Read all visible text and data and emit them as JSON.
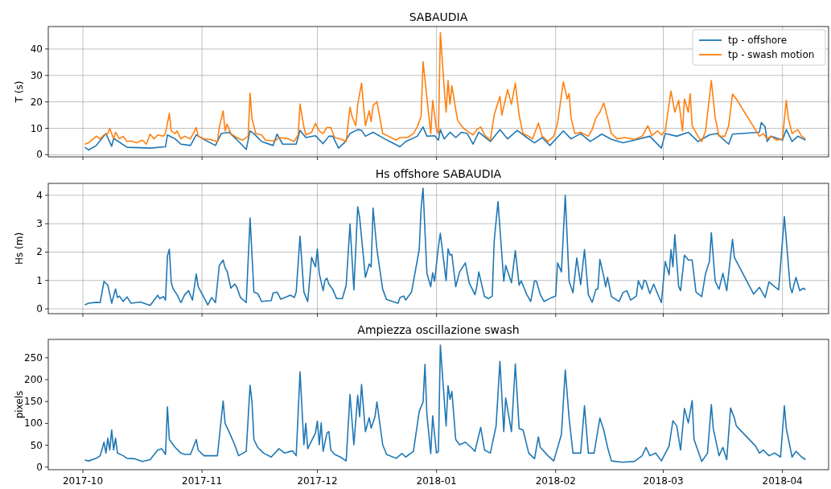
{
  "chart_data": [
    {
      "type": "line",
      "title": "SABAUDIA",
      "ylabel": "T (s)",
      "xlim": [
        "2017-09-22",
        "2018-04-13"
      ],
      "xticks": [
        "2017-10",
        "2017-11",
        "2017-12",
        "2018-01",
        "2018-02",
        "2018-03",
        "2018-04"
      ],
      "ylim": [
        -0.8,
        48.5
      ],
      "yticks": [
        0,
        10,
        20,
        30,
        40
      ],
      "grid": true,
      "legend": "top right",
      "tick_labels": "y",
      "series": [
        {
          "name": "tp - offshore",
          "color": "#1f77b4",
          "x": [
            "2017-10-01T12:00",
            "2017-10-02T12:00",
            "2017-10-04T12:00",
            "2017-10-07",
            "2017-10-08T12:00",
            "2017-10-09",
            "2017-10-12T12:00",
            "2017-10-18T12:00",
            "2017-10-22T12:00",
            "2017-10-23",
            "2017-10-25",
            "2017-10-26T12:00",
            "2017-10-29",
            "2017-10-30T12:00",
            "2017-11-01T12:00",
            "2017-11-04T12:00",
            "2017-11-06",
            "2017-11-08",
            "2017-11-10",
            "2017-11-12T12:00",
            "2017-11-13T12:00",
            "2017-11-14T12:00",
            "2017-11-16T12:00",
            "2017-11-19T12:00",
            "2017-11-20T12:00",
            "2017-11-22",
            "2017-11-25T12:00",
            "2017-11-26T12:00",
            "2017-11-28",
            "2017-11-30T12:00",
            "2017-12-02T12:00",
            "2017-12-04",
            "2017-12-05",
            "2017-12-06T12:00",
            "2017-12-08",
            "2017-12-09T12:00",
            "2017-12-11T12:00",
            "2017-12-12T12:00",
            "2017-12-13T12:00",
            "2017-12-15T12:00",
            "2017-12-18T12:00",
            "2017-12-20T12:00",
            "2017-12-22T12:00",
            "2017-12-24",
            "2017-12-27",
            "2017-12-28T12:00",
            "2017-12-29T12:00",
            "2017-12-31T12:00",
            "2018-01-01T12:00",
            "2018-01-02",
            "2018-01-03",
            "2018-01-04T12:00",
            "2018-01-06",
            "2018-01-07T12:00",
            "2018-01-09",
            "2018-01-10T12:00",
            "2018-01-12",
            "2018-01-15",
            "2018-01-17T12:00",
            "2018-01-19T12:00",
            "2018-01-22",
            "2018-01-24T12:00",
            "2018-01-26T12:00",
            "2018-01-28T12:00",
            "2018-01-30T12:00",
            "2018-02-03",
            "2018-02-05",
            "2018-02-07T12:00",
            "2018-02-10",
            "2018-02-13",
            "2018-02-15T12:00",
            "2018-02-18T12:00",
            "2018-02-21T12:00",
            "2018-02-25T12:00",
            "2018-02-28T12:00",
            "2018-03-01T12:00",
            "2018-03-04T12:00",
            "2018-03-07T12:00",
            "2018-03-10",
            "2018-03-13",
            "2018-03-15",
            "2018-03-18",
            "2018-03-19",
            "2018-03-26",
            "2018-03-26T12:00",
            "2018-03-27T12:00",
            "2018-03-28",
            "2018-03-29",
            "2018-04-01",
            "2018-04-02",
            "2018-04-03T12:00",
            "2018-04-05",
            "2018-04-07"
          ],
          "values": [
            2.8,
            1.8,
            3.5,
            8,
            3.2,
            6.2,
            2.8,
            2.5,
            3,
            7.5,
            6,
            4,
            3.5,
            7.5,
            5.8,
            3.5,
            8,
            8.5,
            5.8,
            2,
            9,
            8,
            5,
            3.5,
            7.8,
            4,
            4,
            9.2,
            6.5,
            7.2,
            4.2,
            7,
            7,
            2.5,
            4.5,
            8,
            9.5,
            9.2,
            7,
            8.5,
            6,
            4.5,
            3,
            5,
            7,
            10.5,
            7,
            7.2,
            5.5,
            9.5,
            6,
            8.5,
            6.5,
            8.5,
            8,
            4,
            8.5,
            5,
            9.5,
            6,
            9.2,
            6.5,
            4.5,
            6.5,
            3.5,
            9,
            6,
            8,
            5,
            7.8,
            5.8,
            4.5,
            5.5,
            7,
            2.5,
            8,
            7,
            8.5,
            5,
            7.5,
            8,
            4,
            7.8,
            8.5,
            12.2,
            10.5,
            5,
            7,
            5.5,
            9.5,
            5,
            7,
            5.5
          ]
        },
        {
          "name": "tp - swash motion",
          "color": "#ff7f0e",
          "x": [
            "2017-10-01T12:00",
            "2017-10-02T12:00",
            "2017-10-04T12:00",
            "2017-10-05T12:00",
            "2017-10-06T12:00",
            "2017-10-07T12:00",
            "2017-10-08",
            "2017-10-09",
            "2017-10-09T12:00",
            "2017-10-10T12:00",
            "2017-10-11T12:00",
            "2017-10-12T12:00",
            "2017-10-13T12:00",
            "2017-10-15",
            "2017-10-16T12:00",
            "2017-10-17T12:00",
            "2017-10-18T12:00",
            "2017-10-19T12:00",
            "2017-10-20T12:00",
            "2017-10-22",
            "2017-10-22T12:00",
            "2017-10-23T12:00",
            "2017-10-24",
            "2017-10-25",
            "2017-10-25T12:00",
            "2017-10-26T12:00",
            "2017-10-27T12:00",
            "2017-10-29",
            "2017-10-30T12:00",
            "2017-10-31",
            "2017-11-01T12:00",
            "2017-11-03",
            "2017-11-05",
            "2017-11-05T12:00",
            "2017-11-06T12:00",
            "2017-11-07",
            "2017-11-07T12:00",
            "2017-11-08T12:00",
            "2017-11-10",
            "2017-11-11T12:00",
            "2017-11-13",
            "2017-11-13T12:00",
            "2017-11-14",
            "2017-11-15",
            "2017-11-16T12:00",
            "2017-11-17T12:00",
            "2017-11-20",
            "2017-11-21",
            "2017-11-23T12:00",
            "2017-11-25",
            "2017-11-26",
            "2017-11-26T12:00",
            "2017-11-27T12:00",
            "2017-11-28",
            "2017-11-29T12:00",
            "2017-11-30T12:00",
            "2017-12-01T12:00",
            "2017-12-02T12:00",
            "2017-12-03T12:00",
            "2017-12-04T12:00",
            "2017-12-05T12:00",
            "2017-12-07",
            "2017-12-08T12:00",
            "2017-12-09T12:00",
            "2017-12-10",
            "2017-12-11",
            "2017-12-11T12:00",
            "2017-12-12T12:00",
            "2017-12-13T12:00",
            "2017-12-14T12:00",
            "2017-12-15",
            "2017-12-15T12:00",
            "2017-12-16T12:00",
            "2017-12-18",
            "2017-12-19T12:00",
            "2017-12-21T12:00",
            "2017-12-22T12:00",
            "2017-12-24T12:00",
            "2017-12-26",
            "2017-12-27",
            "2017-12-28",
            "2017-12-28T12:00",
            "2017-12-30T12:00",
            "2017-12-31",
            "2018-01-01",
            "2018-01-01T12:00",
            "2018-01-02",
            "2018-01-03",
            "2018-01-03T12:00",
            "2018-01-04",
            "2018-01-04T12:00",
            "2018-01-05",
            "2018-01-06",
            "2018-01-06T12:00",
            "2018-01-08",
            "2018-01-09",
            "2018-01-10T12:00",
            "2018-01-11T12:00",
            "2018-01-12T12:00",
            "2018-01-13T12:00",
            "2018-01-15",
            "2018-01-16",
            "2018-01-17T12:00",
            "2018-01-18",
            "2018-01-19T12:00",
            "2018-01-20T12:00",
            "2018-01-21T12:00",
            "2018-01-22T12:00",
            "2018-01-23T12:00",
            "2018-01-25",
            "2018-01-26",
            "2018-01-27T12:00",
            "2018-01-28T12:00",
            "2018-01-30",
            "2018-01-31T12:00",
            "2018-02-01T12:00",
            "2018-02-03",
            "2018-02-04",
            "2018-02-04T12:00",
            "2018-02-05",
            "2018-02-06",
            "2018-02-07T12:00",
            "2018-02-09T12:00",
            "2018-02-10T12:00",
            "2018-02-11T12:00",
            "2018-02-12T12:00",
            "2018-02-13T12:00",
            "2018-02-14T12:00",
            "2018-02-15T12:00",
            "2018-02-17",
            "2018-02-19",
            "2018-02-21T12:00",
            "2018-02-23T12:00",
            "2018-02-25",
            "2018-02-26",
            "2018-02-27T12:00",
            "2018-02-28T12:00",
            "2018-03-01T12:00",
            "2018-03-03",
            "2018-03-04",
            "2018-03-05",
            "2018-03-06",
            "2018-03-06T12:00",
            "2018-03-07T12:00",
            "2018-03-08",
            "2018-03-08T12:00",
            "2018-03-10",
            "2018-03-11",
            "2018-03-12",
            "2018-03-13T12:00",
            "2018-03-14T12:00",
            "2018-03-15T12:00",
            "2018-03-17",
            "2018-03-18",
            "2018-03-19",
            "2018-03-20",
            "2018-03-26",
            "2018-03-27",
            "2018-03-28",
            "2018-03-29",
            "2018-03-30T12:00",
            "2018-04-01",
            "2018-04-02",
            "2018-04-02T12:00",
            "2018-04-03T12:00",
            "2018-04-05",
            "2018-04-06",
            "2018-04-07"
          ],
          "values": [
            4,
            4.5,
            7,
            6,
            7.5,
            8,
            10,
            6,
            8.5,
            6,
            7,
            5,
            5.2,
            4.5,
            5.5,
            4,
            7.8,
            6,
            7.5,
            7,
            8.3,
            15.6,
            9,
            8,
            9,
            6,
            7,
            6,
            10.3,
            7,
            6,
            5.8,
            5,
            10.5,
            16.6,
            9,
            11.6,
            8,
            6.5,
            5.5,
            7,
            23.3,
            13.6,
            8,
            7.5,
            5.5,
            5.2,
            6.5,
            6,
            5,
            7.5,
            19.1,
            10.5,
            7.5,
            8.5,
            11.9,
            9,
            8,
            10.3,
            10.3,
            6.5,
            6,
            5,
            18,
            14.6,
            11,
            19,
            27.1,
            11,
            16.6,
            12.5,
            18.6,
            20.1,
            8,
            7,
            5.5,
            6.5,
            6.5,
            8,
            10.5,
            14.6,
            35.2,
            8,
            20.6,
            9.5,
            8,
            46.2,
            25.1,
            16.1,
            28.1,
            19.1,
            26.1,
            17.1,
            13,
            10,
            9,
            7.5,
            9.5,
            10.5,
            7.5,
            5.5,
            15,
            22.1,
            15,
            24.6,
            19.1,
            27.1,
            15,
            8,
            7,
            6,
            12,
            7,
            5,
            7,
            12,
            27.6,
            21.1,
            23.1,
            14,
            8,
            8.5,
            7,
            9.5,
            14,
            16.1,
            19.6,
            14,
            8,
            6,
            6.5,
            5.8,
            7,
            11,
            7.2,
            9,
            7.5,
            9,
            24.1,
            16.1,
            20.6,
            9,
            21.1,
            16.1,
            23.1,
            11,
            7,
            5,
            9,
            28.1,
            14,
            7,
            7,
            11,
            22.9,
            21.1,
            7,
            8,
            6,
            7,
            5.5,
            6,
            20.6,
            14,
            8,
            9.5,
            7,
            6
          ]
        }
      ]
    },
    {
      "type": "line",
      "title": "Hs offshore SABAUDIA",
      "ylabel": "Hs (m)",
      "xlim": [
        "2017-09-22",
        "2018-04-13"
      ],
      "xticks": [
        "2017-10",
        "2017-11",
        "2017-12",
        "2018-01",
        "2018-02",
        "2018-03",
        "2018-04"
      ],
      "ylim": [
        -0.17,
        4.42
      ],
      "yticks": [
        0,
        1,
        2,
        3,
        4
      ],
      "grid": true,
      "tick_labels": "y",
      "series": [
        {
          "color": "#1f77b4",
          "x": [
            "2017-10-01T12:00",
            "2017-10-02T12:00",
            "2017-10-04T12:00",
            "2017-10-05T12:00",
            "2017-10-06T12:00",
            "2017-10-07T12:00",
            "2017-10-08T12:00",
            "2017-10-09T12:00",
            "2017-10-10",
            "2017-10-10T12:00",
            "2017-10-11T12:00",
            "2017-10-12T12:00",
            "2017-10-13T12:00",
            "2017-10-16",
            "2017-10-18T12:00",
            "2017-10-20T12:00",
            "2017-10-21",
            "2017-10-22",
            "2017-10-22T12:00",
            "2017-10-23",
            "2017-10-23T12:00",
            "2017-10-24",
            "2017-10-24T12:00",
            "2017-10-25T12:00",
            "2017-10-26T12:00",
            "2017-10-27T12:00",
            "2017-10-28T12:00",
            "2017-10-29T12:00",
            "2017-10-30T12:00",
            "2017-10-31",
            "2017-11-01T12:00",
            "2017-11-02T12:00",
            "2017-11-03T12:00",
            "2017-11-04T12:00",
            "2017-11-05T12:00",
            "2017-11-06T12:00",
            "2017-11-07",
            "2017-11-07T12:00",
            "2017-11-08T12:00",
            "2017-11-09T12:00",
            "2017-11-10",
            "2017-11-11",
            "2017-11-12T12:00",
            "2017-11-13T12:00",
            "2017-11-14T12:00",
            "2017-11-15T12:00",
            "2017-11-16T12:00",
            "2017-11-19",
            "2017-11-19T12:00",
            "2017-11-20T12:00",
            "2017-11-21T12:00",
            "2017-11-24",
            "2017-11-25",
            "2017-11-25T12:00",
            "2017-11-26T12:00",
            "2017-11-27T12:00",
            "2017-11-28T12:00",
            "2017-11-29T12:00",
            "2017-11-30T12:00",
            "2017-12-01",
            "2017-12-01T12:00",
            "2017-12-02T12:00",
            "2017-12-03",
            "2017-12-03T12:00",
            "2017-12-04",
            "2017-12-05",
            "2017-12-06",
            "2017-12-07T12:00",
            "2017-12-08T12:00",
            "2017-12-09T12:00",
            "2017-12-10T12:00",
            "2017-12-11T12:00",
            "2017-12-12",
            "2017-12-13T12:00",
            "2017-12-14T12:00",
            "2017-12-15",
            "2017-12-15T12:00",
            "2017-12-16T12:00",
            "2017-12-18",
            "2017-12-19",
            "2017-12-20T12:00",
            "2017-12-22",
            "2017-12-22T12:00",
            "2017-12-23T12:00",
            "2017-12-24",
            "2017-12-25",
            "2017-12-25T12:00",
            "2017-12-27T12:00",
            "2017-12-28",
            "2017-12-28T12:00",
            "2017-12-29T12:00",
            "2017-12-30T12:00",
            "2017-12-31",
            "2017-12-31T12:00",
            "2018-01-01T12:00",
            "2018-01-02",
            "2018-01-03T12:00",
            "2018-01-04",
            "2018-01-04T12:00",
            "2018-01-05",
            "2018-01-06",
            "2018-01-07",
            "2018-01-08T12:00",
            "2018-01-09T12:00",
            "2018-01-11",
            "2018-01-11T12:00",
            "2018-01-12",
            "2018-01-13T12:00",
            "2018-01-14T12:00",
            "2018-01-15T12:00",
            "2018-01-16",
            "2018-01-17",
            "2018-01-18T12:00",
            "2018-01-19",
            "2018-01-20T12:00",
            "2018-01-21T12:00",
            "2018-01-22T12:00",
            "2018-01-23",
            "2018-01-24T12:00",
            "2018-01-25T12:00",
            "2018-01-26T12:00",
            "2018-01-27",
            "2018-01-28",
            "2018-01-29",
            "2018-01-31",
            "2018-02-01",
            "2018-02-01T12:00",
            "2018-02-02T12:00",
            "2018-02-03T12:00",
            "2018-02-04T12:00",
            "2018-02-05T12:00",
            "2018-02-06T12:00",
            "2018-02-07T12:00",
            "2018-02-08T12:00",
            "2018-02-09T12:00",
            "2018-02-10T12:00",
            "2018-02-11T12:00",
            "2018-02-12",
            "2018-02-12T12:00",
            "2018-02-13T12:00",
            "2018-02-14",
            "2018-02-14T12:00",
            "2018-02-15T12:00",
            "2018-02-17T12:00",
            "2018-02-18T12:00",
            "2018-02-19T12:00",
            "2018-02-20T12:00",
            "2018-02-22",
            "2018-02-22T12:00",
            "2018-02-23T12:00",
            "2018-02-24",
            "2018-02-24T12:00",
            "2018-02-25T12:00",
            "2018-02-26T12:00",
            "2018-02-27T12:00",
            "2018-02-28T12:00",
            "2018-03-01T12:00",
            "2018-03-02T12:00",
            "2018-03-03",
            "2018-03-03T12:00",
            "2018-03-04",
            "2018-03-05",
            "2018-03-05T12:00",
            "2018-03-06T12:00",
            "2018-03-07T12:00",
            "2018-03-08T12:00",
            "2018-03-09T12:00",
            "2018-03-11",
            "2018-03-12",
            "2018-03-13",
            "2018-03-13T12:00",
            "2018-03-14T12:00",
            "2018-03-15T12:00",
            "2018-03-16T12:00",
            "2018-03-17T12:00",
            "2018-03-19",
            "2018-03-19T12:00",
            "2018-03-24T12:00",
            "2018-03-26",
            "2018-03-27T12:00",
            "2018-03-28T12:00",
            "2018-03-29T12:00",
            "2018-03-31",
            "2018-04-01T12:00",
            "2018-04-03",
            "2018-04-03T12:00",
            "2018-04-04T12:00",
            "2018-04-05T12:00",
            "2018-04-06T12:00",
            "2018-04-07"
          ],
          "values": [
            0.14,
            0.2,
            0.23,
            0.22,
            0.97,
            0.83,
            0.2,
            0.7,
            0.4,
            0.45,
            0.26,
            0.42,
            0.2,
            0.24,
            0.12,
            0.48,
            0.36,
            0.43,
            0.31,
            1.86,
            2.1,
            0.92,
            0.7,
            0.5,
            0.22,
            0.5,
            0.64,
            0.31,
            1.23,
            0.78,
            0.4,
            0.14,
            0.4,
            0.22,
            1.53,
            1.72,
            1.44,
            1.34,
            0.73,
            0.87,
            0.78,
            0.4,
            0.22,
            3.2,
            0.59,
            0.54,
            0.26,
            0.29,
            0.56,
            0.59,
            0.34,
            0.48,
            0.4,
            0.59,
            2.56,
            0.59,
            0.26,
            1.81,
            1.48,
            2.11,
            1.25,
            0.64,
            1.01,
            1.08,
            0.87,
            0.69,
            0.36,
            0.36,
            0.83,
            2.99,
            0.67,
            3.6,
            3.22,
            1.11,
            1.58,
            1.48,
            3.55,
            2.09,
            0.69,
            0.33,
            0.26,
            0.2,
            0.4,
            0.45,
            0.31,
            0.5,
            0.59,
            2.09,
            3.55,
            4.25,
            1.25,
            0.78,
            1.27,
            0.97,
            2.19,
            2.66,
            0.99,
            2.11,
            1.9,
            1.92,
            0.78,
            1.3,
            1.62,
            0.92,
            0.5,
            0.8,
            1.3,
            0.43,
            0.36,
            0.45,
            2.38,
            3.78,
            0.97,
            1.53,
            0.92,
            2.05,
            0.83,
            0.99,
            0.5,
            0.26,
            0.99,
            0.97,
            0.5,
            0.26,
            0.4,
            0.45,
            1.62,
            1.3,
            4.0,
            0.97,
            0.57,
            1.79,
            0.85,
            2.09,
            0.5,
            0.23,
            0.69,
            0.7,
            1.74,
            1.15,
            0.78,
            1.11,
            0.43,
            0.26,
            0.57,
            0.64,
            0.31,
            0.45,
            0.99,
            0.69,
            1.01,
            0.97,
            0.54,
            0.87,
            0.54,
            0.22,
            1.67,
            1.2,
            2.08,
            1.48,
            2.61,
            0.78,
            0.64,
            1.89,
            1.72,
            1.72,
            0.59,
            0.43,
            1.25,
            1.67,
            2.68,
            0.97,
            0.69,
            1.25,
            0.64,
            2.45,
            1.81,
            0.52,
            0.76,
            0.4,
            0.95,
            0.83,
            0.67,
            3.25,
            0.78,
            0.57,
            1.11,
            0.64,
            0.73,
            0.67
          ]
        }
      ]
    },
    {
      "type": "line",
      "title": "Ampiezza oscillazione swash",
      "ylabel": "pixels",
      "xlim": [
        "2017-09-22",
        "2018-04-13"
      ],
      "xticks": [
        "2017-10",
        "2017-11",
        "2017-12",
        "2018-01",
        "2018-02",
        "2018-03",
        "2018-04"
      ],
      "ylim": [
        -6,
        292
      ],
      "yticks": [
        0,
        50,
        100,
        150,
        200,
        250
      ],
      "series": [
        {
          "color": "#1f77b4",
          "x": [
            "2017-10-01T12:00",
            "2017-10-02T12:00",
            "2017-10-04T12:00",
            "2017-10-05T12:00",
            "2017-10-06T12:00",
            "2017-10-07",
            "2017-10-07T12:00",
            "2017-10-08",
            "2017-10-08T12:00",
            "2017-10-09",
            "2017-10-09T12:00",
            "2017-10-10",
            "2017-10-11T12:00",
            "2017-10-12T12:00",
            "2017-10-14T12:00",
            "2017-10-16T12:00",
            "2017-10-18T12:00",
            "2017-10-20T12:00",
            "2017-10-21T12:00",
            "2017-10-22T12:00",
            "2017-10-23",
            "2017-10-23T12:00",
            "2017-10-25",
            "2017-10-26T12:00",
            "2017-10-27T12:00",
            "2017-10-29",
            "2017-10-30T12:00",
            "2017-10-31",
            "2017-11-01T12:00",
            "2017-11-03",
            "2017-11-05",
            "2017-11-06T12:00",
            "2017-11-07",
            "2017-11-08",
            "2017-11-09T12:00",
            "2017-11-10T12:00",
            "2017-11-12T12:00",
            "2017-11-13T12:00",
            "2017-11-14",
            "2017-11-14T12:00",
            "2017-11-15T12:00",
            "2017-11-17",
            "2017-11-19",
            "2017-11-21",
            "2017-11-22T12:00",
            "2017-11-24T12:00",
            "2017-11-25T12:00",
            "2017-11-26T12:00",
            "2017-11-27T12:00",
            "2017-11-28",
            "2017-11-28T12:00",
            "2017-11-30T12:00",
            "2017-12-01",
            "2017-12-01T12:00",
            "2017-12-02",
            "2017-12-02T12:00",
            "2017-12-03T12:00",
            "2017-12-04",
            "2017-12-04T12:00",
            "2017-12-05T12:00",
            "2017-12-07",
            "2017-12-08T12:00",
            "2017-12-09T12:00",
            "2017-12-10T12:00",
            "2017-12-11T12:00",
            "2017-12-12",
            "2017-12-12T12:00",
            "2017-12-13T12:00",
            "2017-12-14T12:00",
            "2017-12-15",
            "2017-12-16",
            "2017-12-16T12:00",
            "2017-12-18",
            "2017-12-19",
            "2017-12-21T12:00",
            "2017-12-23",
            "2017-12-24",
            "2017-12-26",
            "2017-12-27T12:00",
            "2017-12-28T12:00",
            "2017-12-29",
            "2017-12-29T12:00",
            "2017-12-30T12:00",
            "2017-12-31",
            "2018-01-01",
            "2018-01-01T12:00",
            "2018-01-02",
            "2018-01-03T12:00",
            "2018-01-04",
            "2018-01-04T12:00",
            "2018-01-05",
            "2018-01-06",
            "2018-01-07",
            "2018-01-08T12:00",
            "2018-01-10",
            "2018-01-11",
            "2018-01-12T12:00",
            "2018-01-13T12:00",
            "2018-01-15",
            "2018-01-16T12:00",
            "2018-01-17T12:00",
            "2018-01-18T12:00",
            "2018-01-19",
            "2018-01-20T12:00",
            "2018-01-21T12:00",
            "2018-01-22T12:00",
            "2018-01-23T12:00",
            "2018-01-25",
            "2018-01-26T12:00",
            "2018-01-27T12:00",
            "2018-01-28",
            "2018-01-30",
            "2018-01-31T12:00",
            "2018-02-02T12:00",
            "2018-02-03T12:00",
            "2018-02-04T12:00",
            "2018-02-05T12:00",
            "2018-02-07T12:00",
            "2018-02-08T12:00",
            "2018-02-09T12:00",
            "2018-02-11",
            "2018-02-12T12:00",
            "2018-02-13T12:00",
            "2018-02-14T12:00",
            "2018-02-15T12:00",
            "2018-02-18T12:00",
            "2018-02-21T12:00",
            "2018-02-23T12:00",
            "2018-02-24T12:00",
            "2018-02-25T12:00",
            "2018-02-27",
            "2018-02-28T12:00",
            "2018-03-02T12:00",
            "2018-03-03T12:00",
            "2018-03-04T12:00",
            "2018-03-05T12:00",
            "2018-03-06T12:00",
            "2018-03-07T12:00",
            "2018-03-08T12:00",
            "2018-03-09",
            "2018-03-11",
            "2018-03-12T12:00",
            "2018-03-13T12:00",
            "2018-03-14",
            "2018-03-15T12:00",
            "2018-03-16T12:00",
            "2018-03-17T12:00",
            "2018-03-18T12:00",
            "2018-03-19T12:00",
            "2018-03-20",
            "2018-03-25",
            "2018-03-26",
            "2018-03-27",
            "2018-03-28T12:00",
            "2018-03-30",
            "2018-03-31T12:00",
            "2018-04-01T12:00",
            "2018-04-02",
            "2018-04-03T12:00",
            "2018-04-04T12:00",
            "2018-04-06",
            "2018-04-07"
          ],
          "values": [
            16,
            14,
            20,
            26,
            57,
            32,
            66,
            39,
            85,
            39,
            66,
            32,
            26,
            20,
            19,
            13,
            17,
            39,
            42,
            29,
            138,
            63,
            45,
            32,
            29,
            29,
            63,
            39,
            26,
            26,
            26,
            151,
            100,
            81,
            51,
            26,
            36,
            187,
            149,
            63,
            45,
            32,
            23,
            42,
            32,
            37,
            26,
            218,
            51,
            100,
            42,
            78,
            105,
            51,
            101,
            36,
            78,
            81,
            39,
            29,
            23,
            14,
            166,
            51,
            164,
            115,
            189,
            81,
            113,
            89,
            115,
            149,
            51,
            29,
            20,
            31,
            23,
            36,
            127,
            149,
            235,
            121,
            31,
            117,
            32,
            36,
            279,
            94,
            186,
            155,
            173,
            63,
            51,
            57,
            45,
            36,
            91,
            39,
            32,
            94,
            242,
            81,
            158,
            81,
            236,
            88,
            85,
            32,
            19,
            69,
            45,
            26,
            14,
            75,
            222,
            112,
            32,
            32,
            140,
            32,
            32,
            112,
            85,
            45,
            14,
            11,
            13,
            26,
            45,
            26,
            32,
            14,
            48,
            106,
            94,
            39,
            134,
            101,
            152,
            63,
            13,
            32,
            143,
            88,
            26,
            45,
            17,
            135,
            112,
            94,
            48,
            32,
            39,
            26,
            32,
            23,
            140,
            88,
            23,
            36,
            23,
            17
          ]
        }
      ]
    }
  ]
}
